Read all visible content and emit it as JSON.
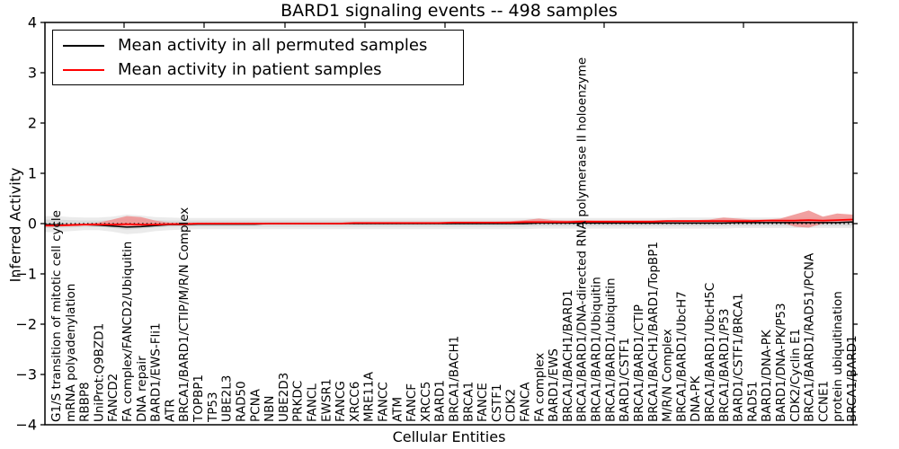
{
  "title": "BARD1 signaling events -- 498 samples",
  "legend": {
    "items": [
      {
        "label": "Mean activity in all permuted samples",
        "color": "#000000"
      },
      {
        "label": "Mean activity in patient samples",
        "color": "#ff0000"
      }
    ]
  },
  "axes": {
    "ylabel": "Inferred Activity",
    "xlabel": "Cellular Entities",
    "yticks": [
      4,
      3,
      2,
      1,
      0,
      -1,
      -2,
      -3,
      -4
    ],
    "ylim": [
      -4,
      4
    ]
  },
  "chart_data": {
    "type": "line",
    "title": "BARD1 signaling events -- 498 samples",
    "xlabel": "Cellular Entities",
    "ylabel": "Inferred Activity",
    "ylim": [
      -4,
      4
    ],
    "grid": false,
    "legend_position": "upper left",
    "zero_line": true,
    "categories": [
      "G1/S transition of mitotic cell cycle",
      "mRNA polyadenylation",
      "RBBP8",
      "UniProt:Q9BZD1",
      "FANCD2",
      "FA complex/FANCD2/Ubiquitin",
      "DNA repair",
      "BARD1/EWS-Fli1",
      "ATR",
      "BRCA1/BARD1/CTIP/M/R/N Complex",
      "TOPBP1",
      "TP53",
      "UBE2L3",
      "RAD50",
      "PCNA",
      "NBN",
      "UBE2D3",
      "PRKDC",
      "FANCL",
      "EWSR1",
      "FANCG",
      "XRCC6",
      "MRE11A",
      "FANCC",
      "ATM",
      "FANCF",
      "XRCC5",
      "BARD1",
      "BRCA1/BACH1",
      "BRCA1",
      "FANCE",
      "CSTF1",
      "CDK2",
      "FANCA",
      "FA complex",
      "BARD1/EWS",
      "BRCA1/BACH1/BARD1",
      "BRCA1/BARD1/DNA-directed RNA polymerase II holoenzyme",
      "BRCA1/BARD1/Ubiquitin",
      "BRCA1/BARD1/ubiquitin",
      "BARD1/CSTF1",
      "BRCA1/BARD1/CTIP",
      "BRCA1/BACH1/BARD1/TopBP1",
      "M/R/N Complex",
      "BRCA1/BARD1/UbcH7",
      "DNA-PK",
      "BRCA1/BARD1/UbcH5C",
      "BRCA1/BARD1/P53",
      "BARD1/CSTF1/BRCA1",
      "RAD51",
      "BARD1/DNA-PK",
      "BARD1/DNA-PK/P53",
      "CDK2/Cyclin E1",
      "BRCA1/BARD1/RAD51/PCNA",
      "CCNE1",
      "protein ubiquitination",
      "BRCA1/BARD1"
    ],
    "series": [
      {
        "name": "Mean activity in all permuted samples",
        "color": "#000000",
        "values": [
          -0.02,
          -0.03,
          -0.02,
          -0.03,
          -0.05,
          -0.07,
          -0.06,
          -0.04,
          -0.02,
          -0.02,
          -0.01,
          -0.01,
          -0.01,
          -0.01,
          -0.01,
          0,
          0,
          0,
          0,
          0,
          0,
          0,
          0,
          0,
          0,
          0,
          0,
          0,
          0,
          0,
          0,
          0,
          0,
          0,
          0.01,
          0.01,
          0.01,
          0.01,
          0.01,
          0.01,
          0.01,
          0.01,
          0.01,
          0.01,
          0.01,
          0.01,
          0.01,
          0.01,
          0.02,
          0.02,
          0.02,
          0.02,
          0.02,
          0.02,
          0.02,
          0.02,
          0.03
        ]
      },
      {
        "name": "Mean activity in patient samples",
        "color": "#ff0000",
        "values": [
          -0.04,
          -0.03,
          -0.02,
          -0.02,
          -0.02,
          -0.01,
          -0.02,
          -0.02,
          -0.01,
          -0.01,
          0,
          0,
          0,
          0,
          0,
          0,
          0,
          0,
          0,
          0,
          0,
          0.01,
          0.01,
          0.01,
          0.01,
          0.01,
          0.01,
          0.01,
          0.02,
          0.02,
          0.02,
          0.02,
          0.02,
          0.03,
          0.03,
          0.03,
          0.03,
          0.04,
          0.04,
          0.04,
          0.04,
          0.04,
          0.04,
          0.05,
          0.05,
          0.05,
          0.05,
          0.05,
          0.05,
          0.05,
          0.06,
          0.06,
          0.06,
          0.07,
          0.06,
          0.07,
          0.08
        ]
      }
    ],
    "bands": [
      {
        "name": "permuted-range-outer",
        "color": "#ebebeb",
        "opacity": 1,
        "upper": [
          0.15,
          0.13,
          0.12,
          0.12,
          0.14,
          0.18,
          0.16,
          0.13,
          0.12,
          0.11,
          0.11,
          0.11,
          0.11,
          0.11,
          0.11,
          0.11,
          0.11,
          0.11,
          0.11,
          0.11,
          0.11,
          0.11,
          0.11,
          0.11,
          0.11,
          0.11,
          0.11,
          0.11,
          0.11,
          0.11,
          0.11,
          0.11,
          0.11,
          0.11,
          0.11,
          0.11,
          0.11,
          0.11,
          0.11,
          0.11,
          0.11,
          0.11,
          0.11,
          0.11,
          0.12,
          0.12,
          0.12,
          0.12,
          0.12,
          0.12,
          0.12,
          0.12,
          0.12,
          0.13,
          0.13,
          0.13,
          0.14
        ],
        "lower": [
          -0.17,
          -0.15,
          -0.13,
          -0.13,
          -0.16,
          -0.21,
          -0.19,
          -0.15,
          -0.13,
          -0.12,
          -0.11,
          -0.11,
          -0.11,
          -0.11,
          -0.11,
          -0.11,
          -0.11,
          -0.11,
          -0.11,
          -0.11,
          -0.11,
          -0.11,
          -0.11,
          -0.11,
          -0.11,
          -0.11,
          -0.11,
          -0.11,
          -0.11,
          -0.11,
          -0.11,
          -0.11,
          -0.11,
          -0.11,
          -0.1,
          -0.1,
          -0.1,
          -0.1,
          -0.1,
          -0.1,
          -0.1,
          -0.1,
          -0.1,
          -0.1,
          -0.1,
          -0.1,
          -0.1,
          -0.1,
          -0.09,
          -0.09,
          -0.09,
          -0.09,
          -0.09,
          -0.09,
          -0.09,
          -0.09,
          -0.09
        ]
      },
      {
        "name": "permuted-range-inner",
        "color": "#dadada",
        "opacity": 1,
        "upper": [
          0.08,
          0.07,
          0.06,
          0.06,
          0.07,
          0.1,
          0.09,
          0.07,
          0.06,
          0.06,
          0.06,
          0.06,
          0.06,
          0.06,
          0.06,
          0.06,
          0.06,
          0.06,
          0.06,
          0.06,
          0.06,
          0.06,
          0.06,
          0.06,
          0.06,
          0.06,
          0.06,
          0.06,
          0.06,
          0.06,
          0.06,
          0.06,
          0.06,
          0.06,
          0.06,
          0.06,
          0.06,
          0.06,
          0.06,
          0.06,
          0.06,
          0.06,
          0.06,
          0.06,
          0.06,
          0.06,
          0.06,
          0.06,
          0.07,
          0.07,
          0.07,
          0.07,
          0.07,
          0.07,
          0.07,
          0.07,
          0.08
        ],
        "lower": [
          -0.09,
          -0.08,
          -0.07,
          -0.07,
          -0.09,
          -0.12,
          -0.1,
          -0.08,
          -0.07,
          -0.06,
          -0.06,
          -0.06,
          -0.06,
          -0.06,
          -0.06,
          -0.06,
          -0.06,
          -0.06,
          -0.06,
          -0.06,
          -0.06,
          -0.06,
          -0.06,
          -0.06,
          -0.06,
          -0.06,
          -0.06,
          -0.06,
          -0.06,
          -0.06,
          -0.06,
          -0.06,
          -0.06,
          -0.06,
          -0.05,
          -0.05,
          -0.05,
          -0.05,
          -0.05,
          -0.05,
          -0.05,
          -0.05,
          -0.05,
          -0.05,
          -0.05,
          -0.05,
          -0.05,
          -0.05,
          -0.05,
          -0.05,
          -0.05,
          -0.05,
          -0.05,
          -0.05,
          -0.05,
          -0.05,
          -0.05
        ]
      },
      {
        "name": "patient-range",
        "color": "#ee8f8f",
        "opacity": 0.85,
        "upper": [
          -0.01,
          0,
          0,
          0.02,
          0.08,
          0.15,
          0.13,
          0.06,
          0.02,
          0.02,
          0.02,
          0.02,
          0.02,
          0.02,
          0.02,
          0.02,
          0.02,
          0.02,
          0.02,
          0.02,
          0.02,
          0.03,
          0.03,
          0.03,
          0.03,
          0.03,
          0.03,
          0.03,
          0.04,
          0.04,
          0.04,
          0.04,
          0.05,
          0.07,
          0.1,
          0.07,
          0.06,
          0.07,
          0.06,
          0.06,
          0.06,
          0.06,
          0.06,
          0.07,
          0.07,
          0.07,
          0.08,
          0.12,
          0.1,
          0.08,
          0.08,
          0.1,
          0.18,
          0.26,
          0.14,
          0.2,
          0.18
        ],
        "lower": [
          -0.06,
          -0.05,
          -0.04,
          -0.04,
          -0.05,
          -0.05,
          -0.05,
          -0.04,
          -0.03,
          -0.02,
          -0.01,
          -0.01,
          -0.01,
          -0.01,
          -0.01,
          -0.01,
          -0.01,
          -0.01,
          -0.01,
          -0.01,
          -0.01,
          0,
          0,
          0,
          0,
          0,
          0,
          0,
          0,
          0,
          0,
          0,
          0,
          0,
          0.01,
          0.01,
          0.01,
          0.02,
          0.02,
          0.02,
          0.02,
          0.02,
          0.02,
          0.03,
          0.03,
          0.03,
          0.03,
          0.03,
          0.03,
          0.03,
          0.04,
          0.03,
          -0.06,
          -0.08,
          0,
          0.03,
          0.04
        ]
      }
    ]
  }
}
